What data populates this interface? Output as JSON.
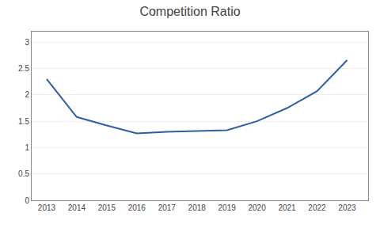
{
  "chart_data": {
    "type": "line",
    "title": "Competition Ratio",
    "x": [
      2013,
      2014,
      2015,
      2016,
      2017,
      2018,
      2019,
      2020,
      2021,
      2022,
      2023
    ],
    "values": [
      2.3,
      1.58,
      1.42,
      1.27,
      1.3,
      1.32,
      1.33,
      1.5,
      1.75,
      2.07,
      2.66
    ],
    "color": "#2E5FA3",
    "xlim": [
      2012.5,
      2023.7
    ],
    "xticks": [
      2013,
      2014,
      2015,
      2016,
      2017,
      2018,
      2019,
      2020,
      2021,
      2022,
      2023
    ],
    "ylim": [
      0,
      3.2
    ],
    "yticks": [
      0,
      0.5,
      1.0,
      1.5,
      2.0,
      2.5,
      3.0
    ],
    "grid": true
  }
}
